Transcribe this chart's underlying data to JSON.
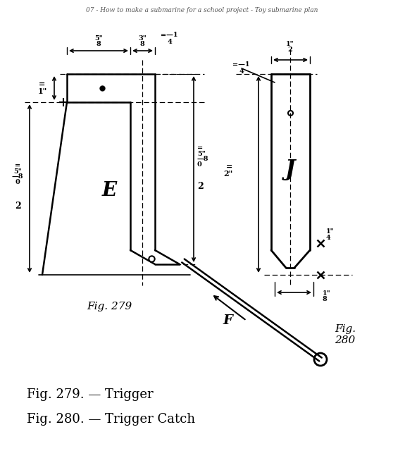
{
  "bg_color": "#ffffff",
  "line_color": "#000000",
  "fig279_label": "Fig. 279",
  "fig280_label": "Fig.\n280",
  "caption1": "Fig. 279. — Trigger",
  "caption2": "Fig. 280. — Trigger Catch",
  "label_E": "E",
  "label_J": "J",
  "label_F": "F",
  "title_top": "07 - How to make a submarine for a school project - Toy submarine plan"
}
